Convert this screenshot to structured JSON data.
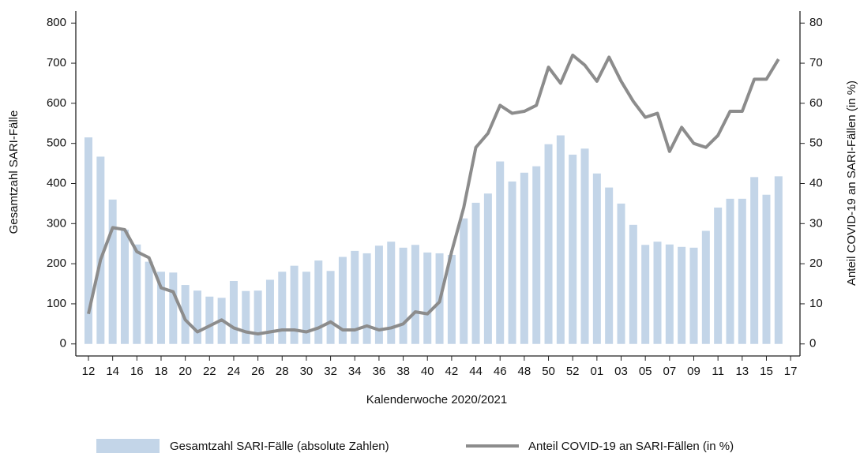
{
  "chart_data": {
    "type": "bar-line",
    "x_label": "Kalenderwoche 2020/2021",
    "y_label": "Gesamtzahl SARI-Fälle",
    "y2_label": "Anteil COVID-19 an SARI-Fällen (in %)",
    "categories": [
      "12",
      null,
      "14",
      null,
      "16",
      null,
      "18",
      null,
      "20",
      null,
      "22",
      null,
      "24",
      null,
      "26",
      null,
      "28",
      null,
      "30",
      null,
      "32",
      null,
      "34",
      null,
      "36",
      null,
      "38",
      null,
      "40",
      null,
      "42",
      null,
      "44",
      null,
      "46",
      null,
      "48",
      null,
      "50",
      null,
      "52",
      null,
      "01",
      null,
      "03",
      null,
      "05",
      null,
      "07",
      null,
      "09",
      null,
      "11",
      null,
      "13",
      null,
      "15",
      null,
      "17"
    ],
    "series": [
      {
        "name": "Gesamtzahl SARI-Fälle (absolute Zahlen)",
        "type": "bar",
        "color": "#c3d5e8",
        "values": [
          515,
          467,
          360,
          285,
          248,
          205,
          180,
          178,
          147,
          133,
          118,
          115,
          157,
          132,
          133,
          160,
          180,
          195,
          180,
          208,
          182,
          217,
          232,
          226,
          245,
          255,
          240,
          247,
          228,
          226,
          222,
          313,
          352,
          375,
          455,
          405,
          427,
          443,
          498,
          520,
          472,
          487,
          425,
          390,
          350,
          297,
          247,
          255,
          248,
          242,
          240,
          282,
          340,
          362,
          362,
          416,
          372,
          418,
          null
        ]
      },
      {
        "name": "Anteil COVID-19 an SARI-Fällen (in %)",
        "type": "line",
        "axis": "y2",
        "color": "#8c8c8c",
        "values": [
          7.5,
          21,
          29,
          28.5,
          23,
          21.5,
          14,
          13,
          6,
          3,
          4.5,
          6,
          4,
          3,
          2.5,
          3,
          3.5,
          3.5,
          3,
          4,
          5.5,
          3.5,
          3.5,
          4.5,
          3.5,
          4,
          5,
          8,
          7.5,
          10.5,
          23,
          34,
          49,
          52.5,
          59.5,
          57.5,
          58,
          59.5,
          69,
          65,
          72,
          69.5,
          65.5,
          71.5,
          65.5,
          60.5,
          56.5,
          57.5,
          48,
          54,
          50,
          49,
          52,
          58,
          58,
          66,
          66,
          71,
          null
        ]
      }
    ],
    "ylim": [
      -30,
      830
    ],
    "yticks": [
      0,
      100,
      200,
      300,
      400,
      500,
      600,
      700,
      800
    ],
    "y2lim": [
      -3,
      83
    ],
    "y2ticks": [
      0,
      10,
      20,
      30,
      40,
      50,
      60,
      70,
      80
    ],
    "legend": "bottom"
  }
}
